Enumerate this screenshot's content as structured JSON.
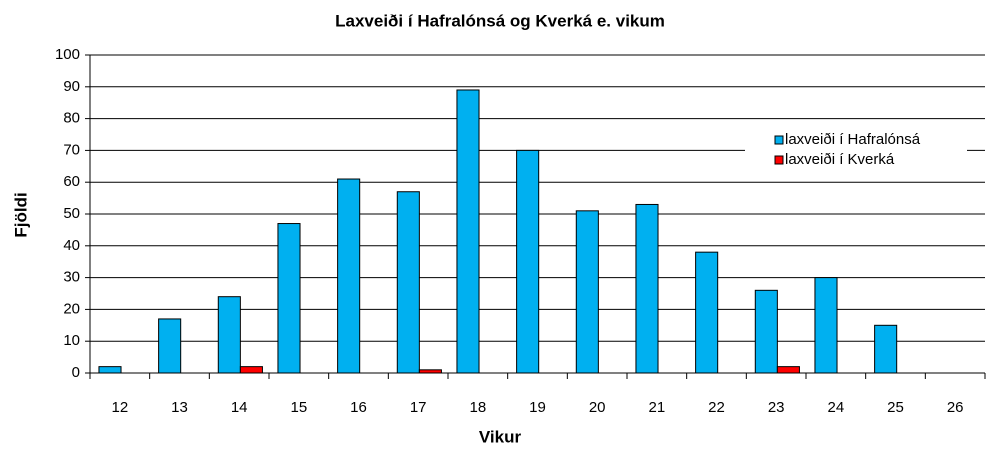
{
  "chart_data": {
    "type": "bar",
    "title": "Laxveiði í Hafralónsá og Kverká e. vikum",
    "xlabel": "Vikur",
    "ylabel": "Fjöldi",
    "categories": [
      "12",
      "13",
      "14",
      "15",
      "16",
      "17",
      "18",
      "19",
      "20",
      "21",
      "22",
      "23",
      "24",
      "25",
      "26"
    ],
    "series": [
      {
        "name": "laxveiði í Hafralónsá",
        "color": "#00b0f0",
        "values": [
          2,
          17,
          24,
          47,
          61,
          57,
          89,
          70,
          51,
          53,
          38,
          26,
          30,
          15,
          0
        ]
      },
      {
        "name": "laxveiði í Kverká",
        "color": "#ff0000",
        "values": [
          0,
          0,
          2,
          0,
          0,
          1,
          0,
          0,
          0,
          0,
          0,
          2,
          0,
          0,
          0
        ]
      }
    ],
    "ylim": [
      0,
      100
    ],
    "yticks": [
      0,
      10,
      20,
      30,
      40,
      50,
      60,
      70,
      80,
      90,
      100
    ],
    "grid": true,
    "legend": "right"
  }
}
